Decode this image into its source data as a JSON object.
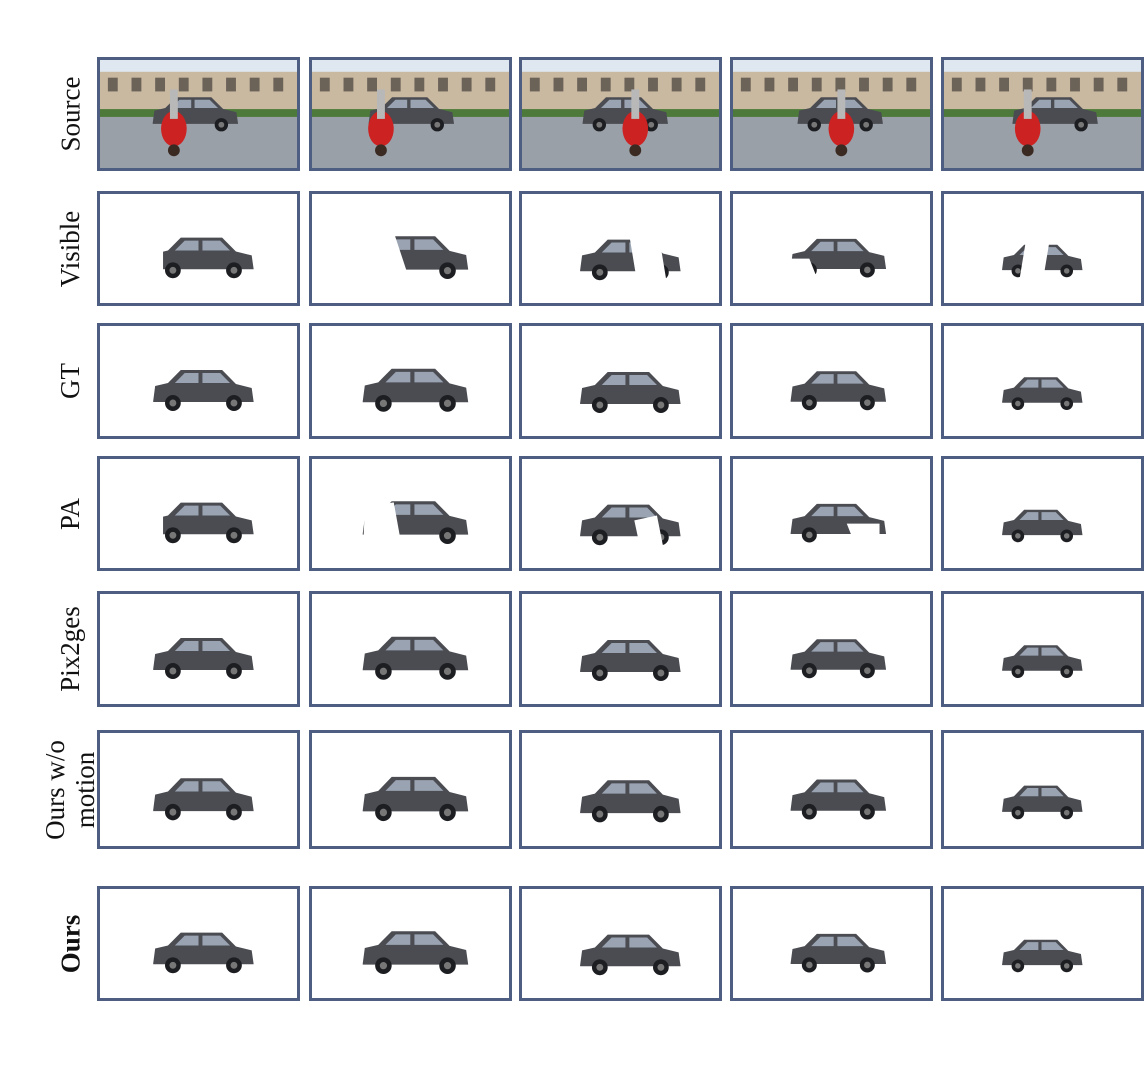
{
  "figure": {
    "rows": [
      {
        "key": "source",
        "label": "Source",
        "bold": false
      },
      {
        "key": "visible",
        "label": "Visible",
        "bold": false
      },
      {
        "key": "gt",
        "label": "GT",
        "bold": false
      },
      {
        "key": "pa",
        "label": "PA",
        "bold": false
      },
      {
        "key": "pix2ges",
        "label": "Pix2ges",
        "bold": false
      },
      {
        "key": "wo_motion",
        "label": "Ours w/o\nmotion",
        "bold": false
      },
      {
        "key": "ours",
        "label": "Ours",
        "bold": true
      }
    ],
    "columns": 5,
    "frame_border_color": "#4e5d82",
    "car_color": "#4a4c52",
    "jacket_color": "#cc2222"
  }
}
